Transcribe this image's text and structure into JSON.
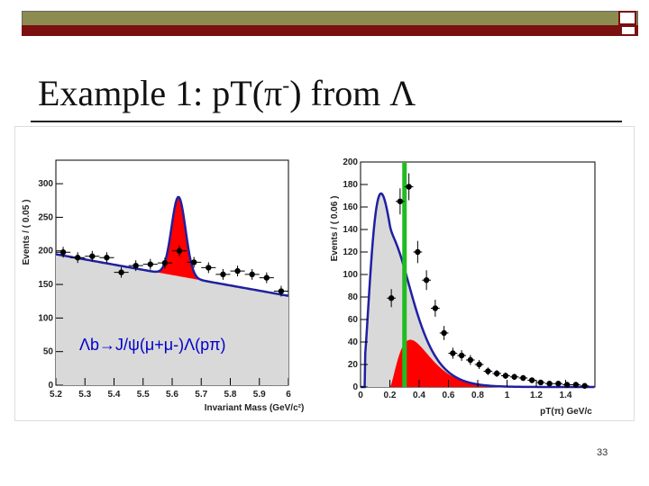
{
  "slide": {
    "title_main": "Example 1: pT(π",
    "title_sup": "-",
    "title_end": ") from Λ",
    "page_number": "33"
  },
  "chart_data": [
    {
      "type": "scatter",
      "subtype": "histogram-fit",
      "xlabel": "Invariant Mass (GeV/c²)",
      "ylabel": "Events / ( 0.05 )",
      "xlim": [
        5.2,
        6.0
      ],
      "ylim": [
        0,
        335
      ],
      "xticks": [
        "5.2",
        "5.3",
        "5.4",
        "5.5",
        "5.6",
        "5.7",
        "5.8",
        "5.9",
        "6"
      ],
      "yticks": [
        "0",
        "50",
        "100",
        "150",
        "200",
        "250",
        "300"
      ],
      "annotation": "Λb→J/ψ(μ+μ-)Λ(pπ)",
      "x": [
        5.225,
        5.275,
        5.325,
        5.375,
        5.425,
        5.475,
        5.525,
        5.575,
        5.625,
        5.675,
        5.725,
        5.775,
        5.825,
        5.875,
        5.925,
        5.975
      ],
      "values": [
        198,
        190,
        192,
        190,
        168,
        178,
        180,
        182,
        200,
        183,
        175,
        165,
        170,
        165,
        160,
        140
      ],
      "fill_colors": {
        "background": "#d9d9d9",
        "signal": "#ff0000",
        "fit": "#2020a0"
      },
      "grid": false
    },
    {
      "type": "scatter",
      "subtype": "histogram-fit",
      "xlabel": "pT(π) GeV/c",
      "ylabel": "Events / ( 0.06 )",
      "xlim": [
        0,
        1.6
      ],
      "ylim": [
        0,
        200
      ],
      "xticks": [
        "0",
        "0.2",
        "0.4",
        "0.6",
        "0.8",
        "1",
        "1.2",
        "1.4"
      ],
      "yticks": [
        "0",
        "20",
        "40",
        "60",
        "80",
        "100",
        "120",
        "140",
        "160",
        "180",
        "200"
      ],
      "x": [
        0.03,
        0.09,
        0.15,
        0.21,
        0.27,
        0.33,
        0.39,
        0.45,
        0.51,
        0.57,
        0.63,
        0.69,
        0.75,
        0.81,
        0.87,
        0.93,
        0.99,
        1.05,
        1.11,
        1.17,
        1.23,
        1.29,
        1.35,
        1.41,
        1.47,
        1.53
      ],
      "values": [
        0,
        0,
        0,
        79,
        165,
        178,
        120,
        95,
        70,
        48,
        30,
        28,
        24,
        20,
        14,
        12,
        10,
        9,
        8,
        6,
        4,
        3,
        3,
        2,
        2,
        1
      ],
      "cut_line_x": 0.3,
      "fill_colors": {
        "background": "#d9d9d9",
        "signal": "#ff0000",
        "fit": "#2020a0",
        "cut": "#22bb22"
      },
      "grid": false
    }
  ]
}
